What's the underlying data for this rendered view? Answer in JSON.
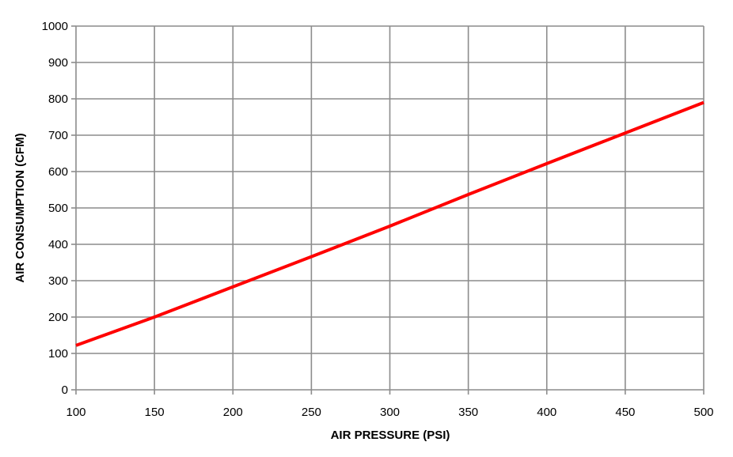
{
  "chart_data": {
    "type": "line",
    "title": "",
    "xlabel": "AIR  PRESSURE (PSI)",
    "ylabel": "AIR CONSUMPTION (CFM)",
    "xlim": [
      100,
      500
    ],
    "ylim": [
      0,
      1000
    ],
    "x_ticks": [
      100,
      150,
      200,
      250,
      300,
      350,
      400,
      450,
      500
    ],
    "y_ticks": [
      0,
      100,
      200,
      300,
      400,
      500,
      600,
      700,
      800,
      900,
      1000
    ],
    "grid": true,
    "legend": "none",
    "series": [
      {
        "color": "#ff0000",
        "x": [
          100,
          150,
          200,
          250,
          300,
          350,
          400,
          450,
          500
        ],
        "y": [
          122,
          200,
          283,
          366,
          450,
          537,
          622,
          706,
          790
        ]
      }
    ]
  }
}
